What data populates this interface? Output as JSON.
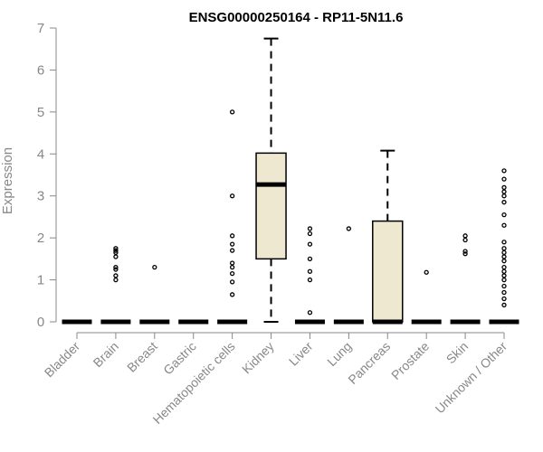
{
  "chart_data": {
    "type": "boxplot",
    "title": "ENSG00000250164 - RP11-5N11.6",
    "xlabel": "",
    "ylabel": "Expression",
    "ylim": [
      0,
      7
    ],
    "yticks": [
      0,
      1,
      2,
      3,
      4,
      5,
      6,
      7
    ],
    "box_fill": "#efe8d0",
    "grid": false,
    "legend": "none",
    "categories": [
      "Bladder",
      "Brain",
      "Breast",
      "Gastric",
      "Hematopoietic cells",
      "Kidney",
      "Liver",
      "Lung",
      "Pancreas",
      "Prostate",
      "Skin",
      "Unknown / Other"
    ],
    "boxes": [
      {
        "min": 0,
        "q1": 0,
        "median": 0,
        "q3": 0,
        "max": 0,
        "outliers": []
      },
      {
        "min": 0,
        "q1": 0,
        "median": 0,
        "q3": 0,
        "max": 0,
        "outliers": [
          1.0,
          1.1,
          1.25,
          1.3,
          1.55,
          1.65,
          1.7,
          1.75
        ]
      },
      {
        "min": 0,
        "q1": 0,
        "median": 0,
        "q3": 0,
        "max": 0,
        "outliers": [
          1.3
        ]
      },
      {
        "min": 0,
        "q1": 0,
        "median": 0,
        "q3": 0,
        "max": 0,
        "outliers": []
      },
      {
        "min": 0,
        "q1": 0,
        "median": 0,
        "q3": 0,
        "max": 0,
        "outliers": [
          0.65,
          0.95,
          1.15,
          1.3,
          1.4,
          1.7,
          1.85,
          2.05,
          3.0,
          5.0
        ]
      },
      {
        "min": 0,
        "q1": 1.5,
        "median": 3.27,
        "q3": 4.02,
        "max": 6.75,
        "outliers": []
      },
      {
        "min": 0,
        "q1": 0,
        "median": 0,
        "q3": 0,
        "max": 0,
        "outliers": [
          0.22,
          1.0,
          1.2,
          1.5,
          1.85,
          2.1,
          2.22
        ]
      },
      {
        "min": 0,
        "q1": 0,
        "median": 0,
        "q3": 0,
        "max": 0,
        "outliers": [
          2.22
        ]
      },
      {
        "min": 0,
        "q1": 0,
        "median": 0,
        "q3": 2.4,
        "max": 4.08,
        "outliers": []
      },
      {
        "min": 0,
        "q1": 0,
        "median": 0,
        "q3": 0,
        "max": 0,
        "outliers": [
          1.18
        ]
      },
      {
        "min": 0,
        "q1": 0,
        "median": 0,
        "q3": 0,
        "max": 0,
        "outliers": [
          1.62,
          1.68,
          1.95,
          2.05
        ]
      },
      {
        "min": 0,
        "q1": 0,
        "median": 0,
        "q3": 0,
        "max": 0,
        "outliers": [
          0.4,
          0.55,
          0.7,
          0.85,
          1.0,
          1.1,
          1.2,
          1.3,
          1.45,
          1.55,
          1.65,
          1.75,
          1.9,
          2.3,
          2.55,
          2.85,
          3.0,
          3.1,
          3.2,
          3.4,
          3.6
        ]
      }
    ]
  }
}
